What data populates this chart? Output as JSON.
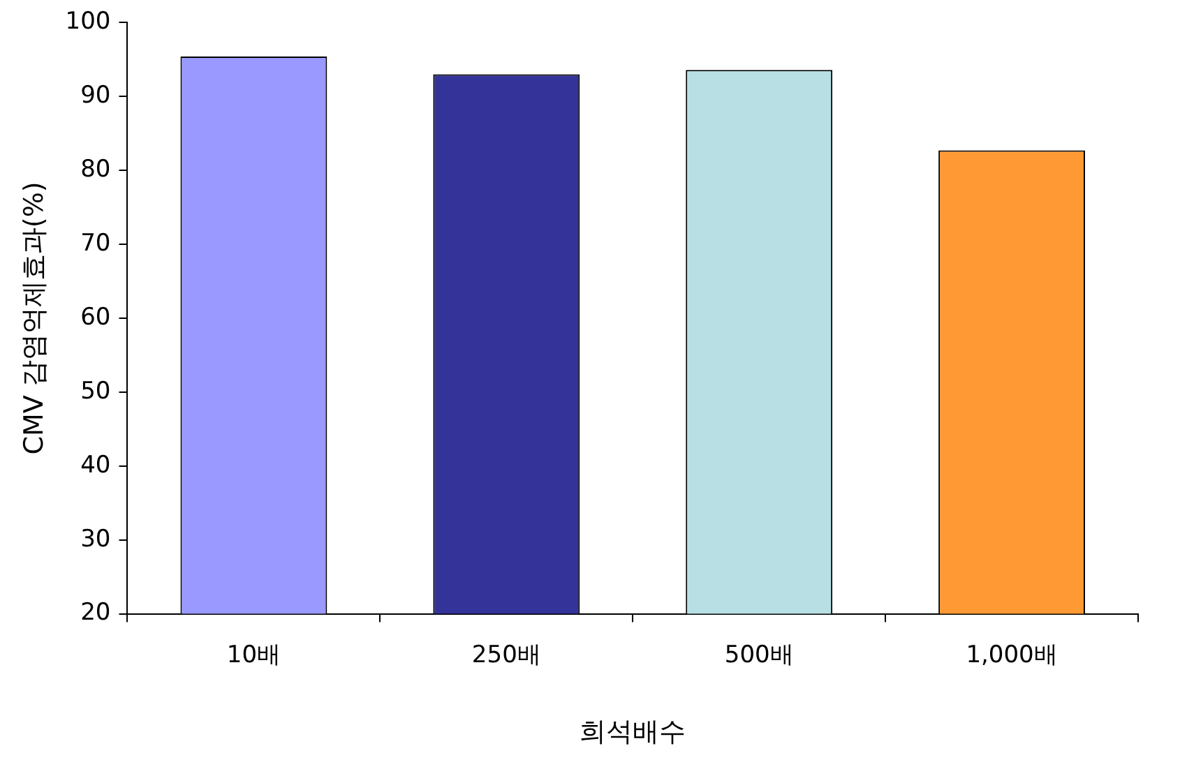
{
  "chart_data": {
    "type": "bar",
    "xlabel": "희석배수",
    "ylabel": "CMV 감염억제효과(%)",
    "categories": [
      "10배",
      "250배",
      "500배",
      "1,000배"
    ],
    "values": [
      95.4,
      93.0,
      93.6,
      82.7
    ],
    "colors": [
      "#9999ff",
      "#333399",
      "#b8e0e4",
      "#ff9933"
    ],
    "ylim": [
      20,
      100
    ],
    "yticks": [
      20,
      30,
      40,
      50,
      60,
      70,
      80,
      90,
      100
    ],
    "grid": false,
    "legend": false
  }
}
